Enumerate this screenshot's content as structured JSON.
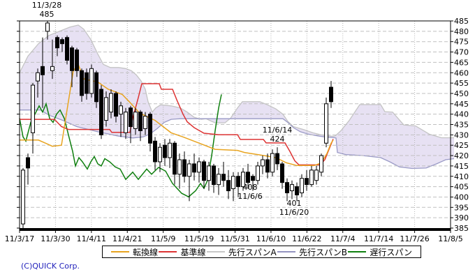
{
  "page": {
    "footer": "(C)QUICK Corp."
  },
  "annotations": {
    "peak": {
      "line1": "11/3/28",
      "line2": "485"
    },
    "jun14": {
      "line1": "11/6/14",
      "line2": "424"
    },
    "jun6": {
      "line1": "408",
      "line2": "11/6/6"
    },
    "jun20": {
      "line1": "401",
      "line2": "11/6/20"
    }
  },
  "chart_data": {
    "type": "candlestick",
    "indicator": "ichimoku",
    "grid": true,
    "y_axis": {
      "min": 385,
      "max": 485,
      "step": 5
    },
    "x_axis": {
      "labels": [
        "11/3/17",
        "11/3/30",
        "11/4/11",
        "11/4/21",
        "11/5/9",
        "11/5/19",
        "11/5/31",
        "11/6/10",
        "11/6/22",
        "11/7/4",
        "11/7/14",
        "11/7/26",
        "11/8/5"
      ]
    },
    "legend": [
      {
        "label": "転換線",
        "color": "#e8a420"
      },
      {
        "label": "基準線",
        "color": "#dd3333"
      },
      {
        "label": "先行スパンA",
        "color": "#c8c8c8"
      },
      {
        "label": "先行スパンB",
        "color": "#9494c0"
      },
      {
        "label": "遅行スパン",
        "color": "#0f7f0f"
      }
    ],
    "colors": {
      "cloud_fill": "#e7e1f3",
      "senkou_a": "#c4c4c4",
      "senkou_b": "#9a9ac6",
      "tenkan": "#e8a420",
      "kijun": "#dd3333",
      "chikou": "#0f7f0f",
      "candle_up_fill": "#ffffff",
      "candle_down_fill": "#000000",
      "candle_stroke": "#000000",
      "grid_h": "#c0c0c0",
      "grid_v": "#b4b4b4",
      "axis": "#000000",
      "footer_text": "#2222bb"
    },
    "candles": [
      [
        387,
        414,
        385,
        413
      ],
      [
        419,
        421,
        406,
        414
      ],
      [
        431,
        455,
        421,
        454
      ],
      [
        456,
        462,
        448,
        460
      ],
      [
        463,
        477,
        443,
        459
      ],
      [
        480,
        485,
        476,
        484
      ],
      [
        461,
        476,
        457,
        463
      ],
      [
        477,
        478,
        468,
        472
      ],
      [
        476,
        477,
        470,
        474
      ],
      [
        477,
        478,
        464,
        466
      ],
      [
        472,
        473,
        453,
        461
      ],
      [
        471,
        472,
        458,
        461
      ],
      [
        461,
        462,
        446,
        449
      ],
      [
        460,
        462,
        447,
        450
      ],
      [
        450,
        464,
        448,
        462
      ],
      [
        460,
        461,
        443,
        446
      ],
      [
        452,
        454,
        428,
        430
      ],
      [
        437,
        451,
        434,
        448
      ],
      [
        441,
        452,
        438,
        450
      ],
      [
        450,
        451,
        436,
        439
      ],
      [
        440,
        446,
        429,
        444
      ],
      [
        431,
        443,
        428,
        441
      ],
      [
        443,
        444,
        426,
        434
      ],
      [
        433,
        443,
        430,
        441
      ],
      [
        441,
        442,
        427,
        432
      ],
      [
        433,
        441,
        430,
        439
      ],
      [
        440,
        441,
        422,
        426
      ],
      [
        427,
        429,
        413,
        417
      ],
      [
        417,
        426,
        412,
        424
      ],
      [
        425,
        428,
        415,
        419
      ],
      [
        419,
        428,
        414,
        426
      ],
      [
        426,
        427,
        406,
        411
      ],
      [
        411,
        421,
        404,
        418
      ],
      [
        418,
        422,
        407,
        410
      ],
      [
        410,
        418,
        398,
        416
      ],
      [
        416,
        421,
        408,
        412
      ],
      [
        412,
        419,
        407,
        417
      ],
      [
        417,
        418,
        404,
        408
      ],
      [
        408,
        417,
        403,
        415
      ],
      [
        415,
        416,
        402,
        406
      ],
      [
        406,
        414,
        401,
        411
      ],
      [
        411,
        417,
        405,
        408
      ],
      [
        408,
        413,
        399,
        403
      ],
      [
        404,
        412,
        398,
        410
      ],
      [
        410,
        412,
        400,
        405
      ],
      [
        405,
        414,
        403,
        412
      ],
      [
        412,
        416,
        404,
        407
      ],
      [
        410,
        411,
        403,
        408
      ],
      [
        408,
        417,
        406,
        415
      ],
      [
        415,
        420,
        411,
        418
      ],
      [
        418,
        421,
        409,
        412
      ],
      [
        412,
        423,
        410,
        421
      ],
      [
        421,
        424,
        413,
        416
      ],
      [
        416,
        417,
        404,
        407
      ],
      [
        407,
        409,
        398,
        402
      ],
      [
        403,
        408,
        399,
        406
      ],
      [
        405,
        407,
        398,
        401
      ],
      [
        402,
        411,
        400,
        409
      ],
      [
        409,
        413,
        403,
        406
      ],
      [
        406,
        415,
        405,
        413
      ],
      [
        408,
        415,
        406,
        413
      ],
      [
        412,
        421,
        410,
        420
      ],
      [
        426,
        448,
        424,
        445
      ],
      [
        453,
        456,
        443,
        446
      ]
    ],
    "lines": {
      "tenkan": [
        [
          28,
          427.5
        ],
        [
          55,
          427.5
        ],
        [
          65,
          426
        ],
        [
          75,
          424.5
        ],
        [
          88,
          425
        ],
        [
          95,
          440
        ],
        [
          105,
          461
        ],
        [
          112,
          464
        ],
        [
          120,
          457
        ],
        [
          140,
          455.5
        ],
        [
          155,
          452
        ],
        [
          175,
          449.5
        ],
        [
          185,
          446
        ],
        [
          200,
          440.5
        ],
        [
          222,
          437
        ],
        [
          245,
          431
        ],
        [
          262,
          429
        ],
        [
          285,
          426
        ],
        [
          308,
          423
        ],
        [
          340,
          422.5
        ],
        [
          350,
          421.5
        ],
        [
          373,
          420.3
        ],
        [
          395,
          419
        ],
        [
          410,
          416.5
        ],
        [
          425,
          415.2
        ],
        [
          450,
          415.2
        ],
        [
          460,
          416.5
        ],
        [
          468,
          421
        ],
        [
          474,
          426
        ],
        [
          477,
          427.5
        ]
      ],
      "kijun": [
        [
          28,
          437.5
        ],
        [
          78,
          437.5
        ],
        [
          88,
          434
        ],
        [
          98,
          432.6
        ],
        [
          157,
          432.6
        ],
        [
          160,
          431.2
        ],
        [
          186,
          431.2
        ],
        [
          190,
          438
        ],
        [
          198,
          448
        ],
        [
          203,
          454.7
        ],
        [
          228,
          454.7
        ],
        [
          231,
          452
        ],
        [
          247,
          452
        ],
        [
          253,
          447
        ],
        [
          262,
          440
        ],
        [
          268,
          436.3
        ],
        [
          278,
          433.5
        ],
        [
          292,
          430.8
        ],
        [
          313,
          430.1
        ],
        [
          340,
          430.1
        ],
        [
          344,
          427.8
        ],
        [
          377,
          427.8
        ],
        [
          381,
          426.1
        ],
        [
          408,
          426.1
        ],
        [
          415,
          422
        ],
        [
          422,
          417.5
        ],
        [
          428,
          415.5
        ],
        [
          458,
          415.5
        ],
        [
          465,
          418
        ],
        [
          471,
          423
        ],
        [
          477,
          428
        ]
      ],
      "chikou": [
        [
          28,
          438
        ],
        [
          33,
          429
        ],
        [
          37,
          427
        ],
        [
          44,
          436
        ],
        [
          50,
          440
        ],
        [
          56,
          444
        ],
        [
          61,
          441
        ],
        [
          66,
          445
        ],
        [
          71,
          438
        ],
        [
          76,
          436
        ],
        [
          81,
          440
        ],
        [
          86,
          442
        ],
        [
          92,
          438
        ],
        [
          98,
          430
        ],
        [
          104,
          422
        ],
        [
          108,
          415
        ],
        [
          113,
          419
        ],
        [
          118,
          417
        ],
        [
          125,
          413.5
        ],
        [
          130,
          417
        ],
        [
          135,
          419.5
        ],
        [
          140,
          416
        ],
        [
          145,
          415
        ],
        [
          150,
          418.5
        ],
        [
          157,
          417
        ],
        [
          165,
          414.5
        ],
        [
          172,
          413.5
        ],
        [
          180,
          408.5
        ],
        [
          190,
          412
        ],
        [
          198,
          408.5
        ],
        [
          210,
          413.5
        ],
        [
          217,
          411
        ],
        [
          227,
          414.3
        ],
        [
          237,
          412.5
        ],
        [
          247,
          406.5
        ],
        [
          260,
          401.8
        ],
        [
          270,
          400.1
        ],
        [
          280,
          403
        ],
        [
          287,
          406.5
        ],
        [
          292,
          404.2
        ],
        [
          297,
          408
        ],
        [
          303,
          420
        ],
        [
          308,
          432
        ],
        [
          313,
          443
        ],
        [
          317,
          449.5
        ]
      ]
    },
    "cloud": {
      "upper": [
        [
          28,
          460
        ],
        [
          40,
          468
        ],
        [
          55,
          474
        ],
        [
          70,
          478
        ],
        [
          85,
          480
        ],
        [
          100,
          482
        ],
        [
          112,
          483
        ],
        [
          120,
          481
        ],
        [
          130,
          476
        ],
        [
          140,
          469
        ],
        [
          148,
          464
        ],
        [
          158,
          462.5
        ],
        [
          170,
          462.5
        ],
        [
          180,
          462
        ],
        [
          188,
          461
        ],
        [
          195,
          459
        ],
        [
          202,
          456
        ],
        [
          208,
          452
        ],
        [
          212,
          446
        ],
        [
          218,
          441
        ],
        [
          223,
          443
        ],
        [
          230,
          444.5
        ],
        [
          245,
          444
        ],
        [
          258,
          443
        ],
        [
          268,
          441
        ],
        [
          278,
          438.5
        ],
        [
          288,
          437.5
        ],
        [
          295,
          437.8
        ],
        [
          300,
          437
        ],
        [
          308,
          435.8
        ],
        [
          322,
          435.8
        ],
        [
          330,
          438
        ],
        [
          340,
          443
        ],
        [
          347,
          446
        ],
        [
          372,
          446
        ],
        [
          383,
          444.5
        ],
        [
          395,
          442.5
        ],
        [
          405,
          440
        ],
        [
          412,
          436.5
        ],
        [
          420,
          434
        ],
        [
          435,
          432.5
        ],
        [
          448,
          431
        ],
        [
          460,
          430
        ],
        [
          470,
          429.5
        ],
        [
          477,
          429.3
        ],
        [
          480,
          429.5
        ],
        [
          488,
          432
        ],
        [
          500,
          437
        ],
        [
          515,
          444.6
        ],
        [
          545,
          444.6
        ],
        [
          551,
          441.2
        ],
        [
          562,
          441
        ],
        [
          578,
          434.8
        ],
        [
          595,
          434.3
        ],
        [
          615,
          430.3
        ],
        [
          632,
          428.6
        ],
        [
          650,
          428.6
        ]
      ],
      "lower": [
        [
          28,
          442
        ],
        [
          58,
          442
        ],
        [
          70,
          439.5
        ],
        [
          90,
          437
        ],
        [
          110,
          434
        ],
        [
          140,
          431.5
        ],
        [
          168,
          429.5
        ],
        [
          190,
          428.5
        ],
        [
          205,
          429
        ],
        [
          215,
          430.5
        ],
        [
          225,
          433
        ],
        [
          235,
          436
        ],
        [
          245,
          437.5
        ],
        [
          258,
          437.8
        ],
        [
          405,
          437.8
        ],
        [
          412,
          436
        ],
        [
          420,
          433.5
        ],
        [
          430,
          431.5
        ],
        [
          442,
          430.3
        ],
        [
          455,
          429.5
        ],
        [
          465,
          429
        ],
        [
          477,
          428.7
        ],
        [
          481,
          428.5
        ],
        [
          483,
          421.5
        ],
        [
          495,
          420.5
        ],
        [
          520,
          420
        ],
        [
          545,
          419
        ],
        [
          558,
          417
        ],
        [
          572,
          414.5
        ],
        [
          590,
          413.8
        ],
        [
          610,
          414
        ],
        [
          625,
          416
        ],
        [
          638,
          418
        ],
        [
          650,
          418.5
        ]
      ]
    }
  }
}
